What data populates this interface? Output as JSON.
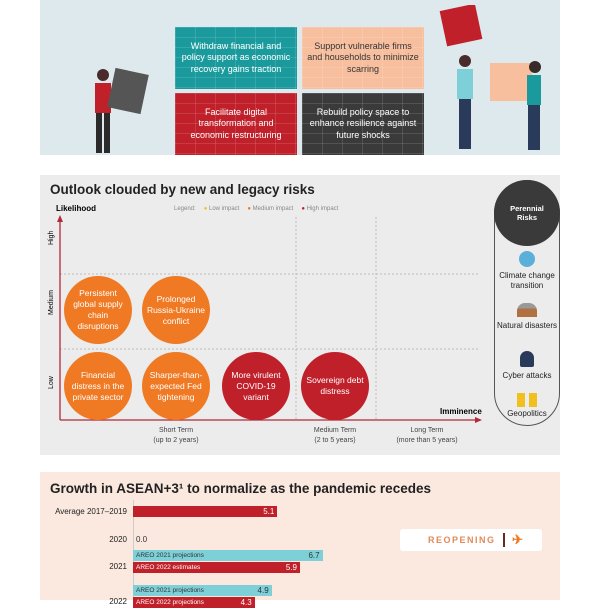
{
  "policy": {
    "quadrants": [
      {
        "text": "Withdraw financial and policy support as economic recovery gains traction",
        "color": "#1a9a9c"
      },
      {
        "text": "Support vulnerable firms and households to minimize scarring",
        "color": "#f8bf9f"
      },
      {
        "text": "Facilitate digital transformation and economic restructuring",
        "color": "#c0202a"
      },
      {
        "text": "Rebuild policy space to enhance resilience against future shocks",
        "color": "#3a3a3a"
      }
    ]
  },
  "risks": {
    "title": "Outlook clouded by new and legacy risks",
    "y_axis": "Likelihood",
    "x_axis": "Imminence",
    "legend": {
      "label": "Legend:",
      "items": [
        {
          "name": "Low impact",
          "color": "#f2c01e"
        },
        {
          "name": "Medium impact",
          "color": "#f07a24"
        },
        {
          "name": "High impact",
          "color": "#c0202a"
        }
      ]
    },
    "y_levels": [
      "High",
      "Medium",
      "Low"
    ],
    "x_levels": [
      {
        "name": "Short Term",
        "sub": "(up to 2 years)"
      },
      {
        "name": "Medium Term",
        "sub": "(2 to 5 years)"
      },
      {
        "name": "Long Term",
        "sub": "(more than 5 years)"
      }
    ],
    "items": [
      {
        "text": "Persistent global supply chain disruptions",
        "impact": "Medium",
        "likelihood": "Medium",
        "imminence": "Short Term"
      },
      {
        "text": "Prolonged Russia-Ukraine conflict",
        "impact": "Medium",
        "likelihood": "Medium",
        "imminence": "Short Term"
      },
      {
        "text": "Financial distress in the private sector",
        "impact": "Medium",
        "likelihood": "Low",
        "imminence": "Short Term"
      },
      {
        "text": "Sharper-than-expected Fed tightening",
        "impact": "Medium",
        "likelihood": "Low",
        "imminence": "Short Term"
      },
      {
        "text": "More virulent COVID-19 variant",
        "impact": "High",
        "likelihood": "Low",
        "imminence": "Short Term"
      },
      {
        "text": "Sovereign debt distress",
        "impact": "High",
        "likelihood": "Low",
        "imminence": "Medium Term"
      }
    ],
    "perennial": {
      "title": "Perennial Risks",
      "items": [
        "Climate change transition",
        "Natural disasters",
        "Cyber attacks",
        "Geopolitics"
      ]
    }
  },
  "growth": {
    "title": "Growth in ASEAN+3¹ to normalize as the pandemic recedes",
    "sign": "REOPENING",
    "chart_data": {
      "type": "bar",
      "categories": [
        "Average 2017–2019",
        "2020",
        "2021",
        "2022"
      ],
      "rows": [
        {
          "label": "Average 2017–2019",
          "bars": [
            {
              "name": "",
              "value": 5.1,
              "color": "#c0202a"
            }
          ]
        },
        {
          "label": "2020",
          "bars": [
            {
              "name": "",
              "value": 0.0,
              "color": "#c0202a"
            }
          ]
        },
        {
          "label": "2021",
          "bars": [
            {
              "name": "AREO 2021 projections",
              "value": 6.7,
              "color": "#7dcfd8"
            },
            {
              "name": "AREO 2022 estimates",
              "value": 5.9,
              "color": "#c0202a"
            }
          ]
        },
        {
          "label": "2022",
          "bars": [
            {
              "name": "AREO 2021 projections",
              "value": 4.9,
              "color": "#7dcfd8"
            },
            {
              "name": "AREO 2022 projections",
              "value": 4.3,
              "color": "#c0202a"
            }
          ]
        }
      ]
    }
  }
}
